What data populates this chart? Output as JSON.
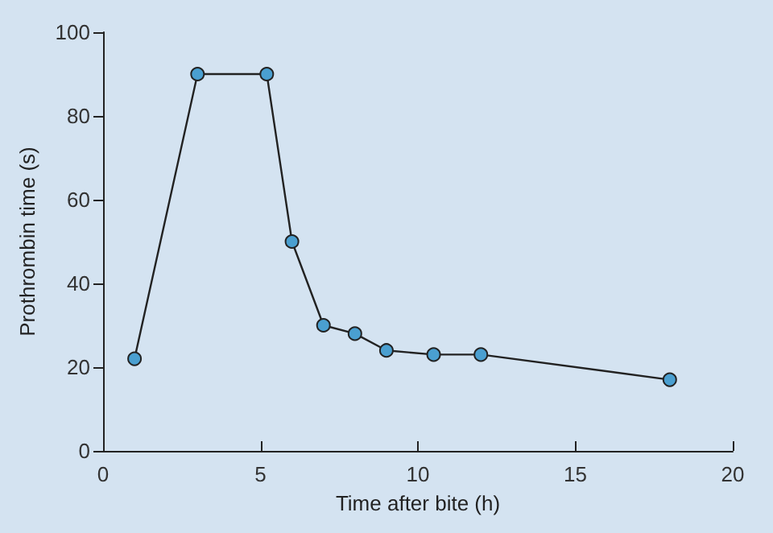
{
  "chart_data": {
    "type": "line",
    "xlabel": "Time after bite (h)",
    "ylabel": "Prothrombin time (s)",
    "x": [
      1,
      3,
      5.2,
      6,
      7,
      8,
      9,
      10.5,
      12,
      18
    ],
    "series": [
      {
        "color": "#4a9fd0",
        "values": [
          22,
          90,
          90,
          50,
          30,
          28,
          24,
          23,
          23,
          17
        ]
      }
    ],
    "xlim": [
      0,
      20
    ],
    "xticks": [
      0,
      5,
      10,
      15,
      20
    ],
    "ylim": [
      0,
      100
    ],
    "yticks": [
      0,
      20,
      40,
      60,
      80,
      100
    ],
    "marker": "circle",
    "line_style": "solid",
    "grid": false
  }
}
